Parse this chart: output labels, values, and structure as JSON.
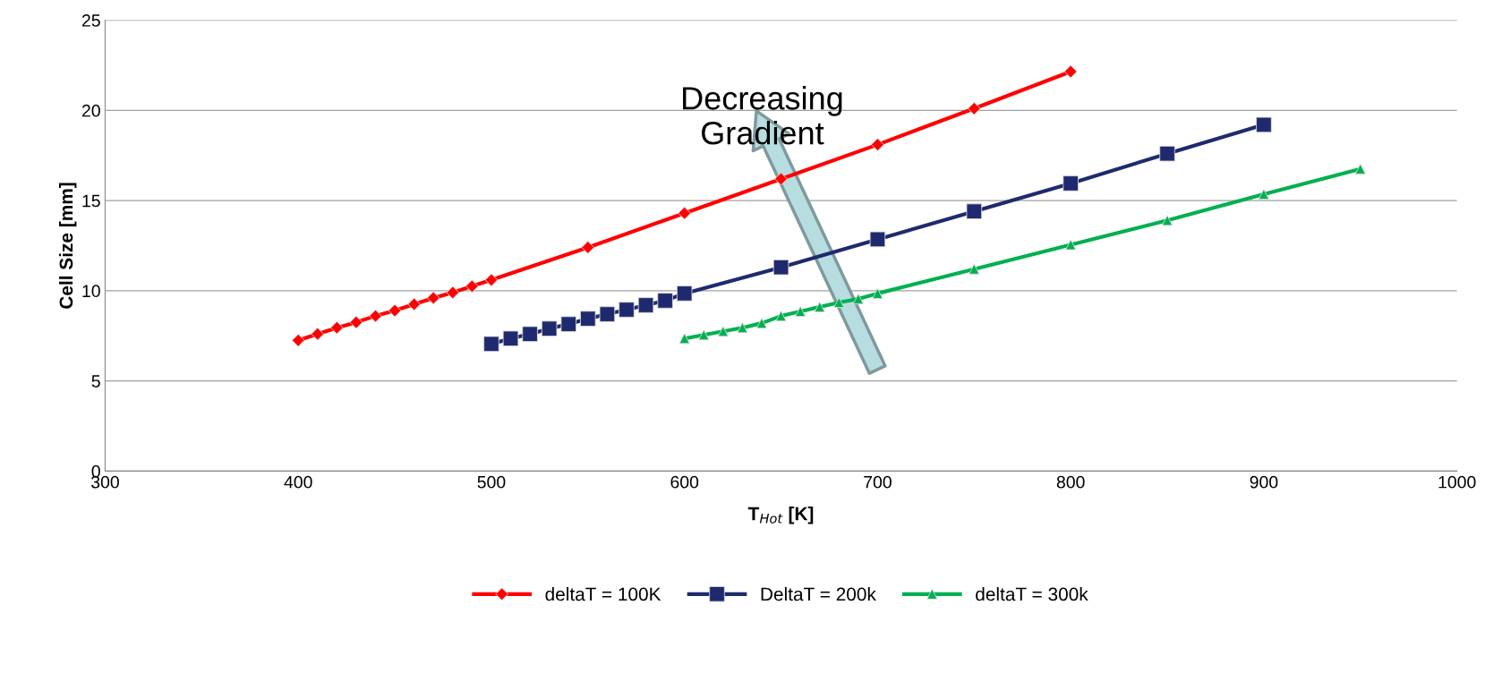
{
  "chart_data": {
    "type": "line",
    "xlabel": "T$_{Hot}$ [K]",
    "ylabel": "Cell Size [mm]",
    "xlim": [
      300,
      1000
    ],
    "xticks": [
      300,
      400,
      500,
      600,
      700,
      800,
      900,
      1000
    ],
    "ylim": [
      0,
      25
    ],
    "yticks": [
      0,
      5,
      10,
      15,
      20,
      25
    ],
    "grid": "y",
    "legend": "bottom",
    "line_style": "solid",
    "annotations": [
      "Decreasing\nGradient"
    ],
    "series": [
      {
        "name": "deltaT = 100K",
        "color": "#ff0000",
        "marker": "diamond",
        "x": [
          400,
          410,
          420,
          430,
          440,
          450,
          460,
          470,
          480,
          490,
          500,
          550,
          600,
          650,
          700,
          750,
          800
        ],
        "values": [
          7.25,
          7.6,
          7.95,
          8.25,
          8.6,
          8.9,
          9.25,
          9.6,
          9.9,
          10.25,
          10.6,
          12.4,
          14.3,
          16.2,
          18.1,
          20.1,
          22.15
        ]
      },
      {
        "name": "DeltaT = 200k",
        "color": "#1f2a6e",
        "marker": "square",
        "x": [
          500,
          510,
          520,
          530,
          540,
          550,
          560,
          570,
          580,
          590,
          600,
          650,
          700,
          750,
          800,
          850,
          900
        ],
        "values": [
          7.05,
          7.35,
          7.6,
          7.9,
          8.15,
          8.45,
          8.7,
          8.95,
          9.2,
          9.45,
          9.85,
          11.3,
          12.85,
          14.4,
          15.95,
          17.6,
          19.2
        ]
      },
      {
        "name": "deltaT = 300k",
        "color": "#00b050",
        "marker": "triangle",
        "x": [
          600,
          610,
          620,
          630,
          640,
          650,
          660,
          670,
          680,
          690,
          700,
          750,
          800,
          850,
          900,
          950
        ],
        "values": [
          7.35,
          7.55,
          7.75,
          7.95,
          8.2,
          8.6,
          8.85,
          9.1,
          9.35,
          9.55,
          9.85,
          11.2,
          12.55,
          13.9,
          15.35,
          16.75
        ]
      }
    ]
  }
}
